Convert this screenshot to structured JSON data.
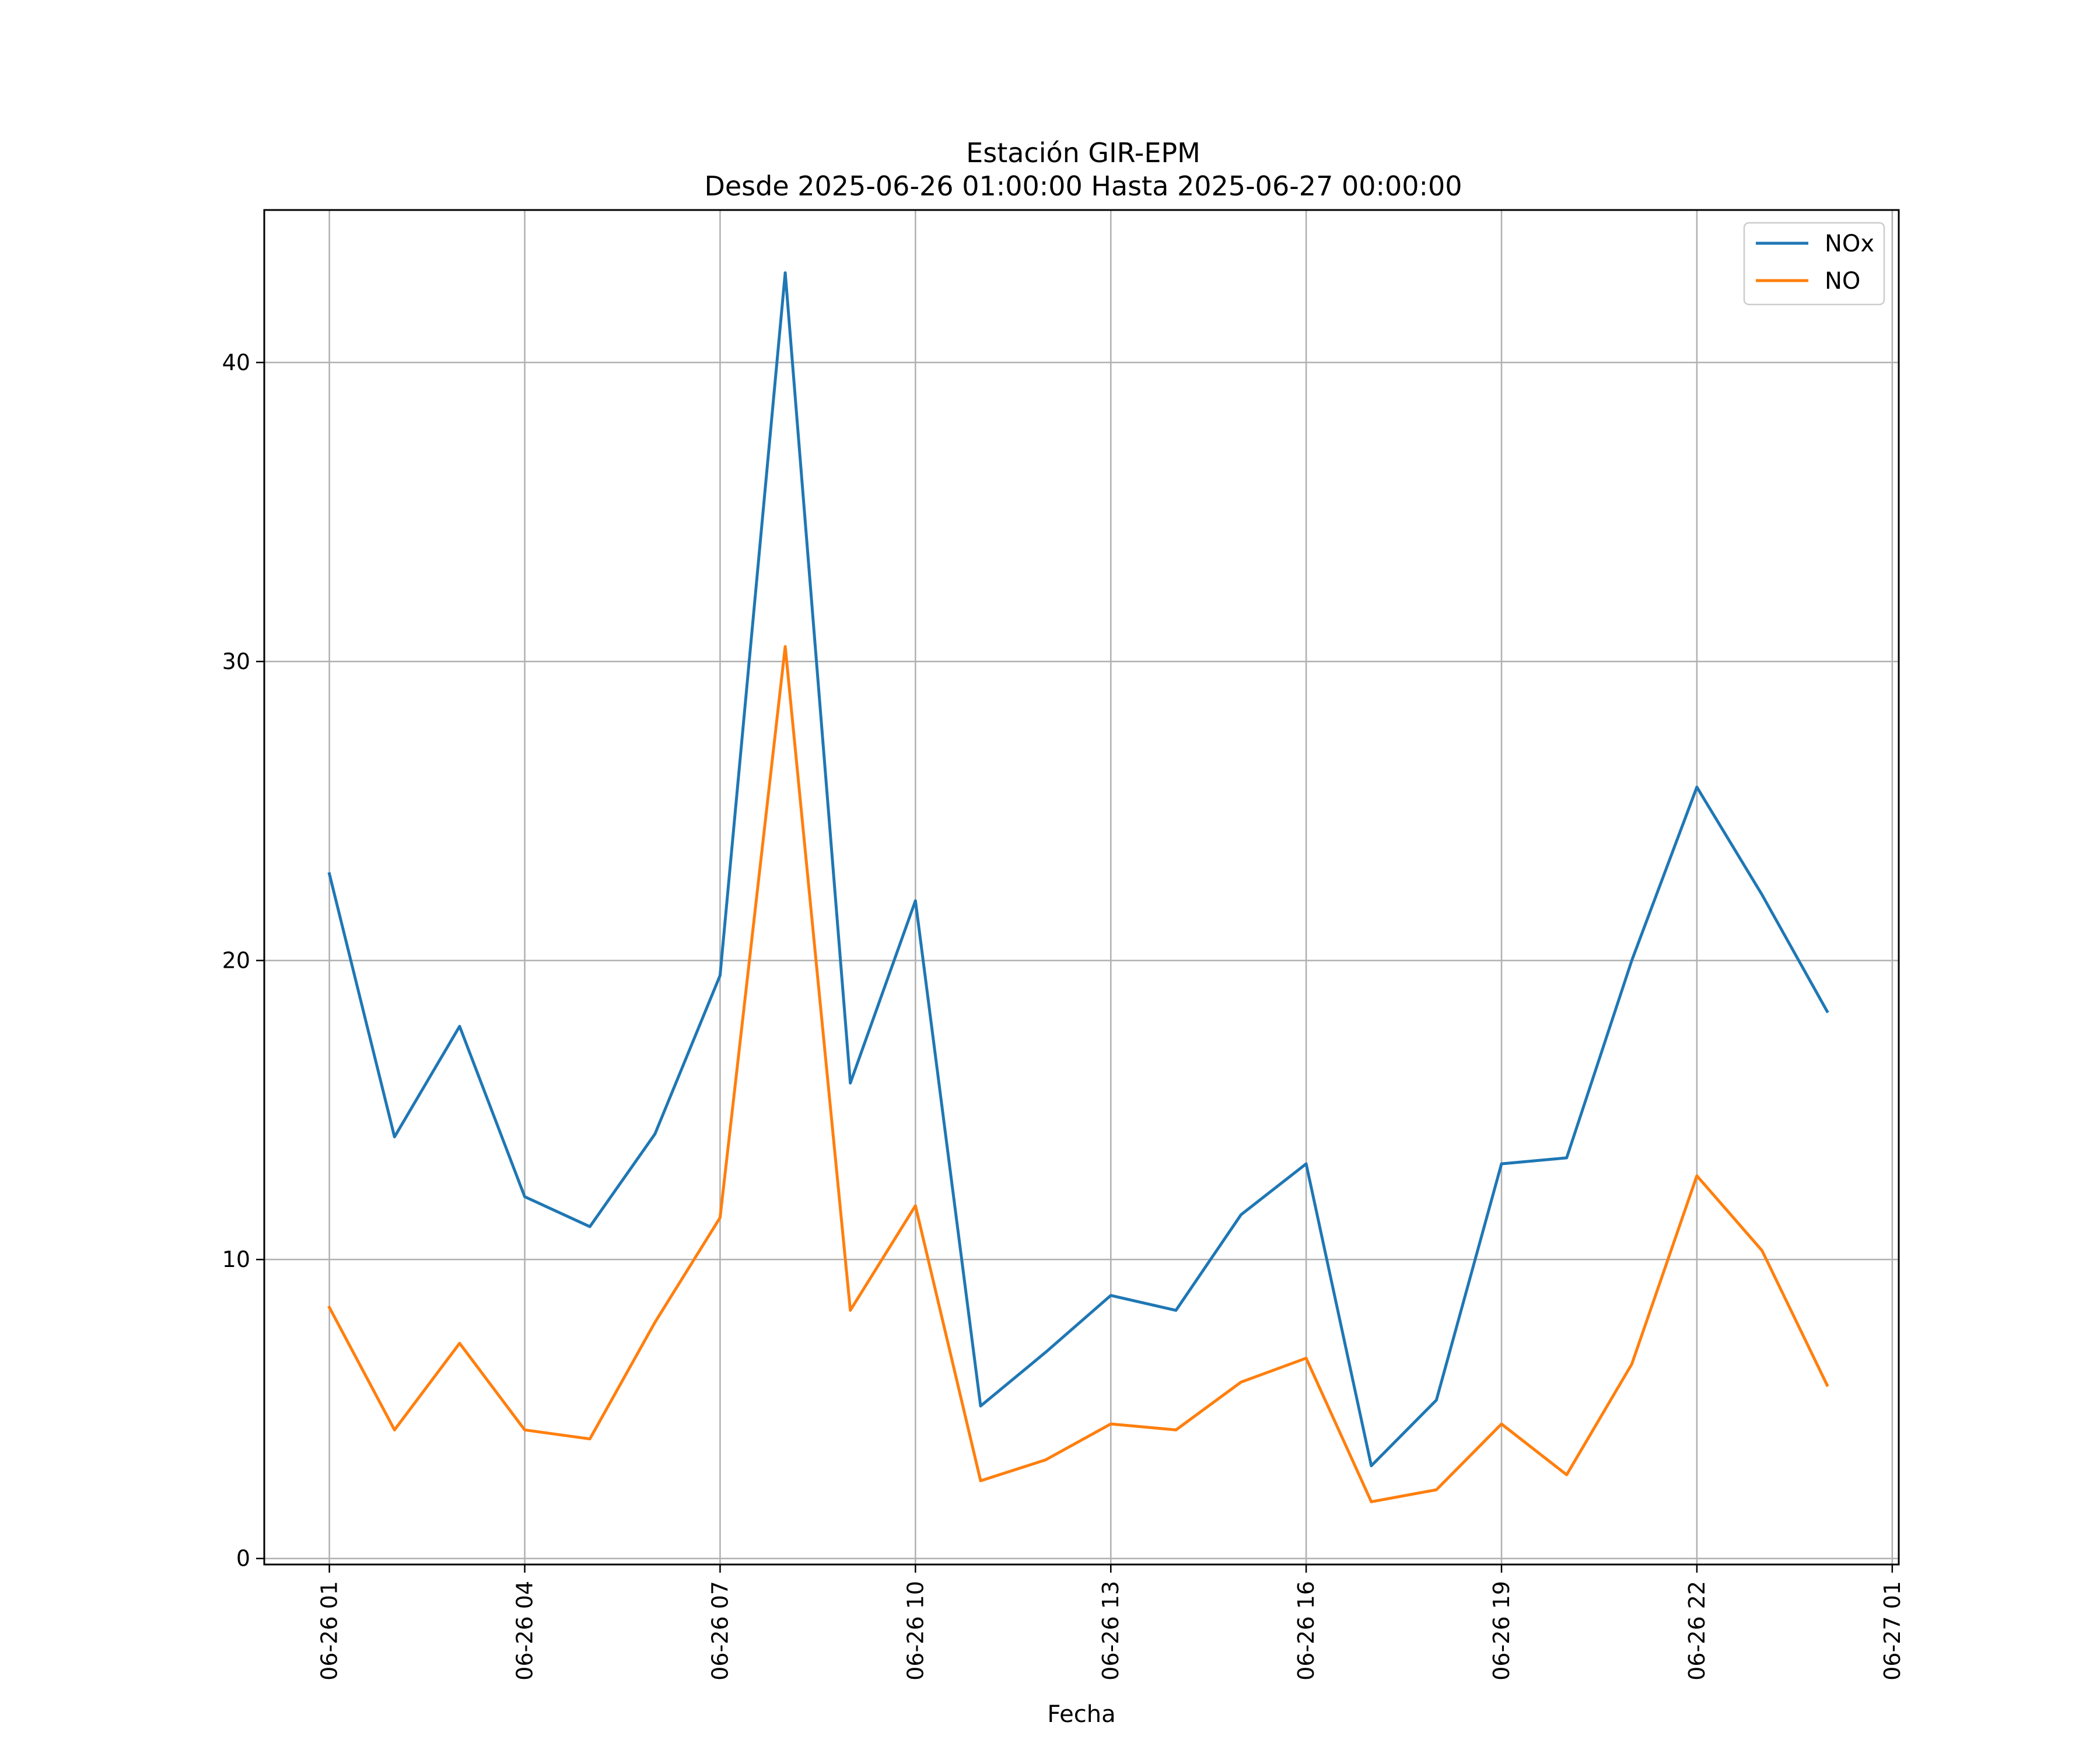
{
  "chart_data": {
    "type": "line",
    "title": "Estación GIR-EPM",
    "subtitle": "Desde 2025-06-26 01:00:00 Hasta 2025-06-27 00:00:00",
    "xlabel": "Fecha",
    "ylabel": "",
    "grid": true,
    "legend_position": "top-right",
    "x": [
      "2025-06-26 01:00",
      "2025-06-26 02:00",
      "2025-06-26 03:00",
      "2025-06-26 04:00",
      "2025-06-26 05:00",
      "2025-06-26 06:00",
      "2025-06-26 07:00",
      "2025-06-26 08:00",
      "2025-06-26 09:00",
      "2025-06-26 10:00",
      "2025-06-26 11:00",
      "2025-06-26 12:00",
      "2025-06-26 13:00",
      "2025-06-26 14:00",
      "2025-06-26 15:00",
      "2025-06-26 16:00",
      "2025-06-26 17:00",
      "2025-06-26 18:00",
      "2025-06-26 19:00",
      "2025-06-26 20:00",
      "2025-06-26 21:00",
      "2025-06-26 22:00",
      "2025-06-26 23:00",
      "2025-06-27 00:00"
    ],
    "xlim": [
      "2025-06-26 00:00",
      "2025-06-27 01:06"
    ],
    "x_ticks": [
      "2025-06-26 01:00",
      "2025-06-26 04:00",
      "2025-06-26 07:00",
      "2025-06-26 10:00",
      "2025-06-26 13:00",
      "2025-06-26 16:00",
      "2025-06-26 19:00",
      "2025-06-26 22:00",
      "2025-06-27 01:00"
    ],
    "x_tick_labels": [
      "06-26 01",
      "06-26 04",
      "06-26 07",
      "06-26 10",
      "06-26 13",
      "06-26 16",
      "06-26 19",
      "06-26 22",
      "06-27 01"
    ],
    "ylim": [
      -0.2,
      45.1
    ],
    "y_ticks": [
      0,
      10,
      20,
      30,
      40
    ],
    "y_tick_labels": [
      "0",
      "10",
      "20",
      "30",
      "40"
    ],
    "series": [
      {
        "name": "NOx",
        "color": "#1f77b4",
        "values": [
          22.9,
          14.1,
          17.8,
          12.1,
          11.1,
          14.2,
          19.5,
          43.0,
          15.9,
          22.0,
          5.1,
          6.9,
          8.8,
          8.3,
          11.5,
          13.2,
          3.1,
          5.3,
          13.2,
          13.4,
          20.0,
          25.8,
          22.2,
          18.3
        ]
      },
      {
        "name": "NO",
        "color": "#ff7f0e",
        "values": [
          8.4,
          4.3,
          7.2,
          4.3,
          4.0,
          7.9,
          11.4,
          30.5,
          8.3,
          11.8,
          2.6,
          3.3,
          4.5,
          4.3,
          5.9,
          6.7,
          1.9,
          2.3,
          4.5,
          2.8,
          6.5,
          12.8,
          10.3,
          5.8
        ]
      }
    ]
  }
}
